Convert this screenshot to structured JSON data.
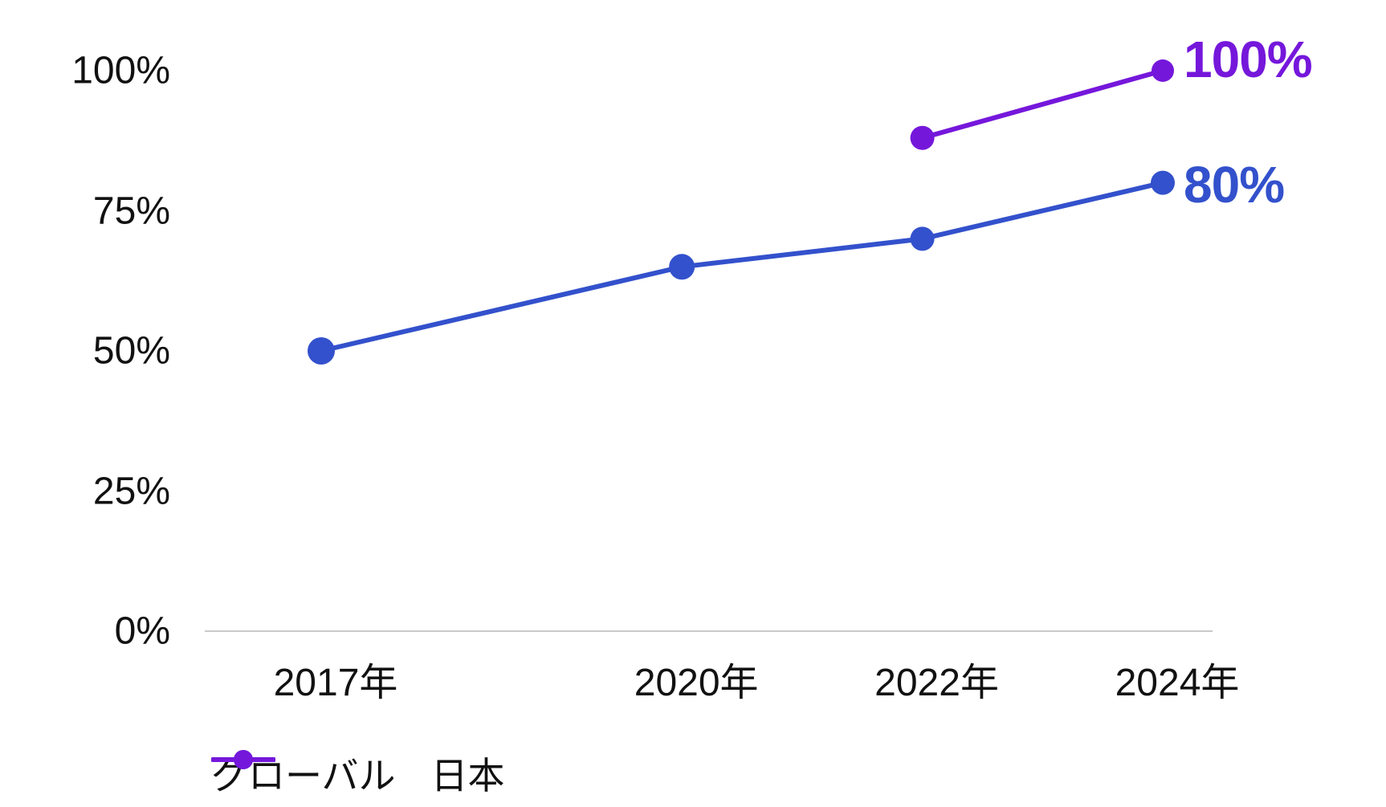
{
  "chart_data": {
    "type": "line",
    "title": "",
    "xlabel": "",
    "ylabel": "",
    "x_years": [
      2017,
      2020,
      2022,
      2024
    ],
    "x_tick_labels": [
      "2017年",
      "2020年",
      "2022年",
      "2024年"
    ],
    "y_tick_values": [
      100,
      75,
      50,
      25,
      0
    ],
    "y_tick_labels": [
      "100%",
      "75%",
      "50%",
      "25%",
      "0%"
    ],
    "ylim": [
      0,
      100
    ],
    "grid": false,
    "legend_position": "bottom",
    "axis_color": "#c9c9c9",
    "text_color": "#111111",
    "series": [
      {
        "name": "グローバル",
        "color": "#3351cc",
        "x": [
          2017,
          2020,
          2022,
          2024
        ],
        "values": [
          50,
          65,
          70,
          80
        ],
        "end_label": "80%"
      },
      {
        "name": "日本",
        "color": "#7517db",
        "x": [
          2022,
          2024
        ],
        "values": [
          88,
          100
        ],
        "end_label": "100%"
      }
    ]
  }
}
